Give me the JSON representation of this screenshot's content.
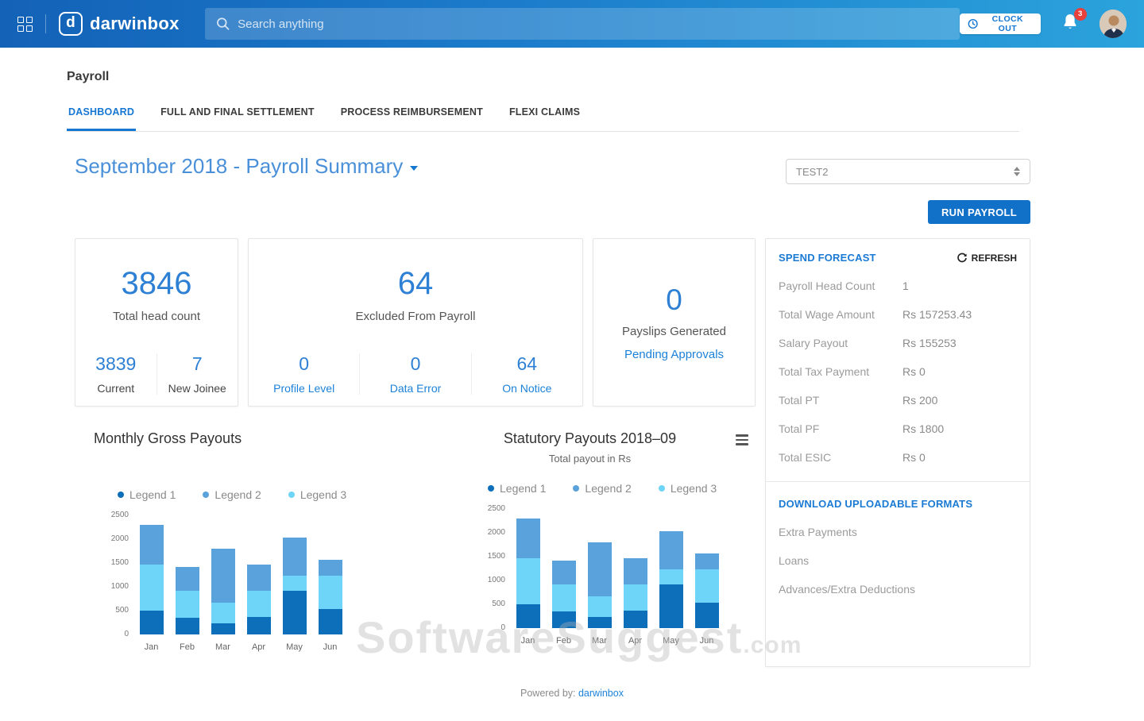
{
  "topbar": {
    "logo_letter": "d",
    "logo_text": "darwinbox",
    "search_placeholder": "Search anything",
    "clock_out_label": "CLOCK OUT",
    "notification_count": "3"
  },
  "page": {
    "heading": "Payroll",
    "tabs": [
      {
        "label": "DASHBOARD"
      },
      {
        "label": "FULL AND FINAL SETTLEMENT"
      },
      {
        "label": "PROCESS REIMBURSEMENT"
      },
      {
        "label": "FLEXI CLAIMS"
      }
    ],
    "section_title": "September 2018 - Payroll Summary",
    "entity_selector_value": "TEST2",
    "run_payroll_label": "RUN PAYROLL"
  },
  "cards": {
    "head_count": {
      "value": "3846",
      "label": "Total head count",
      "sub": [
        {
          "value": "3839",
          "label": "Current"
        },
        {
          "value": "7",
          "label": "New Joinee"
        }
      ]
    },
    "excluded": {
      "value": "64",
      "label": "Excluded From Payroll",
      "sub": [
        {
          "value": "0",
          "label": "Profile Level"
        },
        {
          "value": "0",
          "label": "Data Error"
        },
        {
          "value": "64",
          "label": "On Notice"
        }
      ]
    },
    "payslips": {
      "value": "0",
      "label": "Payslips Generated",
      "link": "Pending Approvals"
    }
  },
  "spend_forecast": {
    "title": "SPEND FORECAST",
    "refresh_label": "REFRESH",
    "rows": [
      {
        "label": "Payroll Head Count",
        "value": "1"
      },
      {
        "label": "Total Wage Amount",
        "value": "Rs 157253.43"
      },
      {
        "label": "Salary Payout",
        "value": "Rs 155253"
      },
      {
        "label": "Total Tax Payment",
        "value": "Rs 0"
      },
      {
        "label": "Total PT",
        "value": "Rs 200"
      },
      {
        "label": "Total PF",
        "value": "Rs 1800"
      },
      {
        "label": "Total ESIC",
        "value": "Rs 0"
      }
    ],
    "download": {
      "title": "DOWNLOAD UPLOADABLE FORMATS",
      "items": [
        "Extra Payments",
        "Loans",
        "Advances/Extra Deductions"
      ]
    }
  },
  "chart_data": [
    {
      "type": "bar",
      "stacked": true,
      "title": "Monthly Gross Payouts",
      "categories": [
        "Jan",
        "Feb",
        "Mar",
        "Apr",
        "May",
        "Jun"
      ],
      "series": [
        {
          "name": "Legend 1",
          "color": "#0d6fba",
          "values": [
            500,
            350,
            230,
            360,
            920,
            530
          ]
        },
        {
          "name": "Legend 2",
          "color": "#5aa2dc",
          "values": [
            830,
            490,
            1140,
            540,
            810,
            340
          ]
        },
        {
          "name": "Legend 3",
          "color": "#6ed5f8",
          "values": [
            970,
            570,
            430,
            560,
            310,
            700
          ]
        }
      ],
      "stack_order": [
        0,
        2,
        1
      ],
      "ylim": [
        0,
        2500
      ],
      "yticks": [
        0,
        500,
        1000,
        1500,
        2000,
        2500
      ],
      "grid": false,
      "legend_position": "top"
    },
    {
      "type": "bar",
      "stacked": true,
      "title": "Statutory Payouts 2018–09",
      "subtitle": "Total payout in Rs",
      "categories": [
        "Jan",
        "Feb",
        "Mar",
        "Apr",
        "May",
        "Jun"
      ],
      "series": [
        {
          "name": "Legend 1",
          "color": "#0d6fba",
          "values": [
            500,
            350,
            230,
            360,
            920,
            530
          ]
        },
        {
          "name": "Legend 2",
          "color": "#5aa2dc",
          "values": [
            830,
            490,
            1140,
            540,
            810,
            340
          ]
        },
        {
          "name": "Legend 3",
          "color": "#6ed5f8",
          "values": [
            970,
            570,
            430,
            560,
            310,
            700
          ]
        }
      ],
      "stack_order": [
        0,
        2,
        1
      ],
      "ylim": [
        0,
        2500
      ],
      "yticks": [
        0,
        500,
        1000,
        1500,
        2000,
        2500
      ],
      "grid": false,
      "legend_position": "top"
    }
  ],
  "watermark": {
    "text": "SoftwareSuggest",
    "suffix": ".com"
  },
  "footer": {
    "powered_by": "Powered by:",
    "brand": "darwinbox"
  }
}
